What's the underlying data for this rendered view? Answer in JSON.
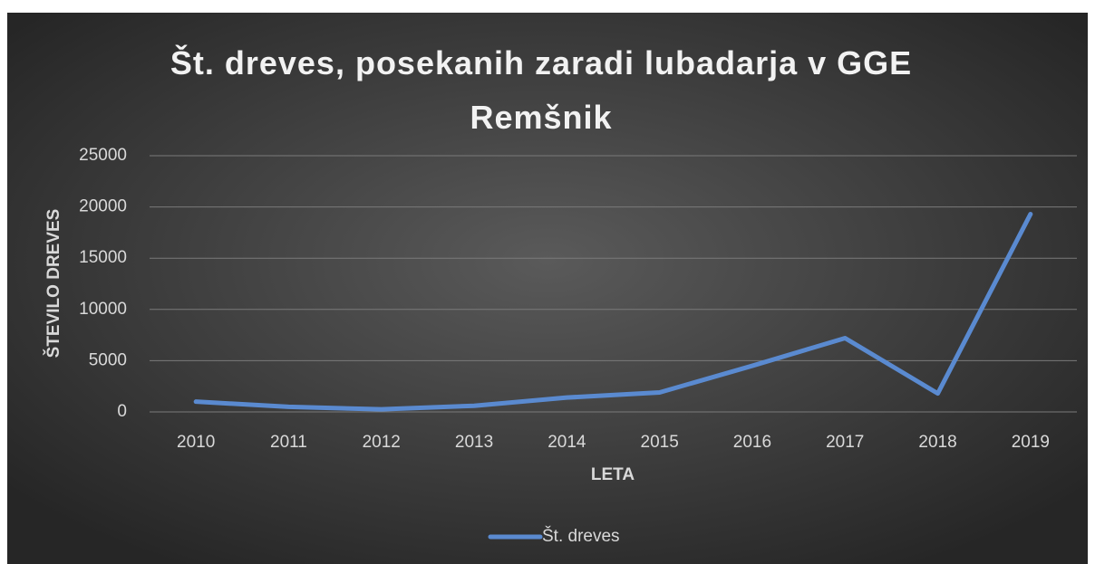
{
  "chart_data": {
    "type": "line",
    "title": "Št. dreves, posekanih zaradi lubadarja v GGE Remšnik",
    "x_label": "LETA",
    "y_label": "ŠTEVILO DREVES",
    "categories": [
      "2010",
      "2011",
      "2012",
      "2013",
      "2014",
      "2015",
      "2016",
      "2017",
      "2018",
      "2019"
    ],
    "series": [
      {
        "name": "Št. dreves",
        "color": "#5a8ad0",
        "values": [
          1000,
          500,
          250,
          600,
          1400,
          1900,
          4500,
          7200,
          1800,
          19300
        ]
      }
    ],
    "ylim": [
      0,
      25000
    ],
    "yticks": [
      0,
      5000,
      10000,
      15000,
      20000,
      25000
    ],
    "grid": true,
    "legend": "bottom"
  }
}
